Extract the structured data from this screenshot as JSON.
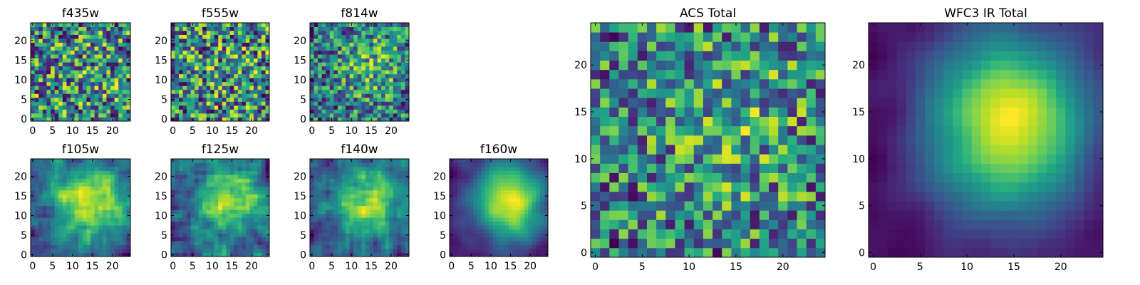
{
  "figure": {
    "description_free": true
  },
  "chart_data": [
    {
      "type": "heatmap",
      "title": "f435w",
      "colormap": "viridis",
      "grid_size": [
        25,
        25
      ],
      "seed": 11,
      "smooth": 0,
      "bias": 0.0,
      "low_freq": 0.06,
      "xticks": [
        0,
        5,
        10,
        15,
        20
      ],
      "xtick_labels": [
        "0",
        "5",
        "10",
        "15",
        "20"
      ],
      "yticks": [
        0,
        5,
        10,
        15,
        20
      ],
      "ytick_labels": [
        "0",
        "5",
        "10",
        "15",
        "20"
      ],
      "xlim": [
        0,
        25
      ],
      "ylim": [
        0,
        25
      ]
    },
    {
      "type": "heatmap",
      "title": "f555w",
      "colormap": "viridis",
      "grid_size": [
        25,
        25
      ],
      "seed": 23,
      "smooth": 0,
      "bias": 0.0,
      "low_freq": 0.05,
      "xticks": [
        0,
        5,
        10,
        15,
        20
      ],
      "xtick_labels": [
        "0",
        "5",
        "10",
        "15",
        "20"
      ],
      "yticks": [
        0,
        5,
        10,
        15,
        20
      ],
      "ytick_labels": [
        "0",
        "5",
        "10",
        "15",
        "20"
      ],
      "xlim": [
        0,
        25
      ],
      "ylim": [
        0,
        25
      ]
    },
    {
      "type": "heatmap",
      "title": "f814w",
      "colormap": "viridis",
      "grid_size": [
        25,
        25
      ],
      "seed": 37,
      "smooth": 0,
      "bias": 0.08,
      "low_freq": 0.25,
      "xticks": [
        0,
        5,
        10,
        15,
        20
      ],
      "xtick_labels": [
        "0",
        "5",
        "10",
        "15",
        "20"
      ],
      "yticks": [
        0,
        5,
        10,
        15,
        20
      ],
      "ytick_labels": [
        "0",
        "5",
        "10",
        "15",
        "20"
      ],
      "xlim": [
        0,
        25
      ],
      "ylim": [
        0,
        25
      ]
    },
    {
      "type": "heatmap",
      "title": "f105w",
      "colormap": "viridis",
      "grid_size": [
        25,
        25
      ],
      "seed": 41,
      "smooth": 1,
      "bias": 0.05,
      "low_freq": 0.45,
      "xticks": [
        0,
        5,
        10,
        15,
        20
      ],
      "xtick_labels": [
        "0",
        "5",
        "10",
        "15",
        "20"
      ],
      "yticks": [
        0,
        5,
        10,
        15,
        20
      ],
      "ytick_labels": [
        "0",
        "5",
        "10",
        "15",
        "20"
      ],
      "xlim": [
        0,
        25
      ],
      "ylim": [
        0,
        25
      ]
    },
    {
      "type": "heatmap",
      "title": "f125w",
      "colormap": "viridis",
      "grid_size": [
        25,
        25
      ],
      "seed": 53,
      "smooth": 1,
      "bias": 0.1,
      "low_freq": 0.35,
      "xticks": [
        0,
        5,
        10,
        15,
        20
      ],
      "xtick_labels": [
        "0",
        "5",
        "10",
        "15",
        "20"
      ],
      "yticks": [
        0,
        5,
        10,
        15,
        20
      ],
      "ytick_labels": [
        "0",
        "5",
        "10",
        "15",
        "20"
      ],
      "xlim": [
        0,
        25
      ],
      "ylim": [
        0,
        25
      ]
    },
    {
      "type": "heatmap",
      "title": "f140w",
      "colormap": "viridis",
      "grid_size": [
        25,
        25
      ],
      "seed": 67,
      "smooth": 1,
      "bias": 0.08,
      "low_freq": 0.4,
      "xticks": [
        0,
        5,
        10,
        15,
        20
      ],
      "xtick_labels": [
        "0",
        "5",
        "10",
        "15",
        "20"
      ],
      "yticks": [
        0,
        5,
        10,
        15,
        20
      ],
      "ytick_labels": [
        "0",
        "5",
        "10",
        "15",
        "20"
      ],
      "xlim": [
        0,
        25
      ],
      "ylim": [
        0,
        25
      ]
    },
    {
      "type": "heatmap",
      "title": "f160w",
      "colormap": "viridis",
      "grid_size": [
        25,
        25
      ],
      "seed": 79,
      "smooth": 2,
      "bias": 0.05,
      "low_freq": 0.6,
      "xticks": [
        0,
        5,
        10,
        15,
        20
      ],
      "xtick_labels": [
        "0",
        "5",
        "10",
        "15",
        "20"
      ],
      "yticks": [
        0,
        5,
        10,
        15,
        20
      ],
      "ytick_labels": [
        "0",
        "5",
        "10",
        "15",
        "20"
      ],
      "xlim": [
        0,
        25
      ],
      "ylim": [
        0,
        25
      ]
    },
    {
      "type": "heatmap",
      "title": "ACS Total",
      "colormap": "viridis",
      "grid_size": [
        25,
        25
      ],
      "seed": 97,
      "smooth": 0,
      "bias": 0.08,
      "low_freq": 0.2,
      "xticks": [
        0,
        5,
        10,
        15,
        20
      ],
      "xtick_labels": [
        "0",
        "5",
        "10",
        "15",
        "20"
      ],
      "yticks": [
        0,
        5,
        10,
        15,
        20
      ],
      "ytick_labels": [
        "0",
        "5",
        "10",
        "15",
        "20"
      ],
      "xlim": [
        0,
        25
      ],
      "ylim": [
        0,
        25
      ]
    },
    {
      "type": "heatmap",
      "title": "WFC3 IR Total",
      "colormap": "viridis",
      "grid_size": [
        25,
        25
      ],
      "seed": 113,
      "smooth": 2,
      "bias": 0.0,
      "low_freq": 0.75,
      "xticks": [
        0,
        5,
        10,
        15,
        20
      ],
      "xtick_labels": [
        "0",
        "5",
        "10",
        "15",
        "20"
      ],
      "yticks": [
        0,
        5,
        10,
        15,
        20
      ],
      "ytick_labels": [
        "0",
        "5",
        "10",
        "15",
        "20"
      ],
      "xlim": [
        0,
        25
      ],
      "ylim": [
        0,
        25
      ]
    }
  ]
}
